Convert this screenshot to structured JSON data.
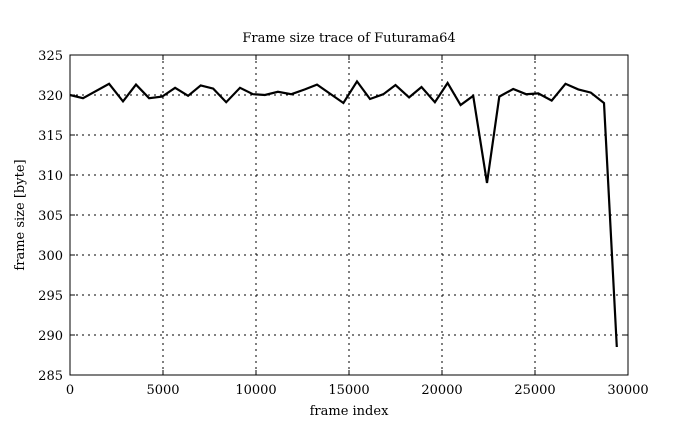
{
  "chart_data": {
    "type": "line",
    "title": "Frame size trace of Futurama64",
    "xlabel": "frame index",
    "ylabel": "frame size [byte]",
    "xlim": [
      0,
      30000
    ],
    "ylim": [
      285,
      325
    ],
    "xticks": [
      0,
      5000,
      10000,
      15000,
      20000,
      25000,
      30000
    ],
    "yticks": [
      285,
      290,
      295,
      300,
      305,
      310,
      315,
      320,
      325
    ],
    "grid": true,
    "line_color": "#000000",
    "series": [
      {
        "x": [
          0,
          700,
          2100,
          2850,
          3550,
          4250,
          4950,
          5650,
          6350,
          7025,
          7700,
          8400,
          9140,
          9840,
          10480,
          11180,
          11900,
          12630,
          13280,
          14700,
          15430,
          16130,
          16850,
          17500,
          18230,
          18900,
          19620,
          20300,
          21000,
          21680,
          22420,
          23080,
          23830,
          24520,
          25180,
          25900,
          26640,
          27330,
          28000,
          28710,
          29400
        ],
        "y": [
          320.0,
          319.6,
          321.4,
          319.2,
          321.3,
          319.6,
          319.8,
          320.9,
          319.9,
          321.2,
          320.8,
          319.1,
          320.9,
          320.1,
          320.0,
          320.4,
          320.1,
          320.7,
          321.3,
          319.0,
          321.7,
          319.5,
          320.1,
          321.25,
          319.7,
          321.0,
          319.1,
          321.5,
          318.75,
          319.9,
          309.0,
          319.8,
          320.75,
          320.1,
          320.2,
          319.3,
          321.4,
          320.7,
          320.3,
          319.0,
          288.5
        ]
      }
    ]
  }
}
